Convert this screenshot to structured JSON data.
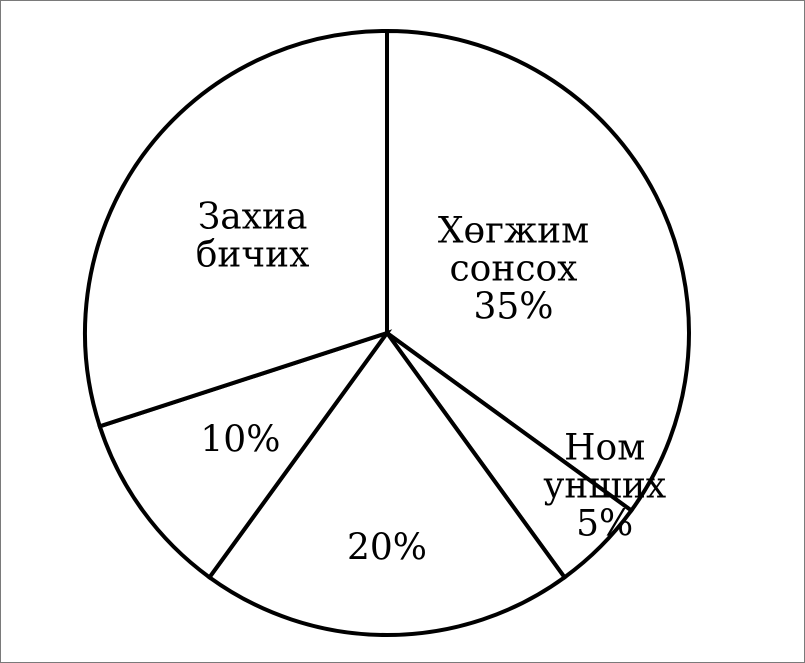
{
  "chart_data": {
    "type": "pie",
    "title": "",
    "slices": [
      {
        "label_lines": [
          "Хөгжим",
          "сонсох",
          "35%"
        ],
        "value": 35
      },
      {
        "label_lines": [
          "Ном",
          "унших",
          "5%"
        ],
        "value": 5
      },
      {
        "label_lines": [
          "20%"
        ],
        "value": 20
      },
      {
        "label_lines": [
          "10%"
        ],
        "value": 10
      },
      {
        "label_lines": [
          "Захиа",
          "бичих"
        ],
        "value": 30
      }
    ],
    "start_angle_deg": 0,
    "direction": "clockwise",
    "legend": "none",
    "colors": {
      "fill": "#ffffff",
      "stroke": "#000000"
    }
  }
}
